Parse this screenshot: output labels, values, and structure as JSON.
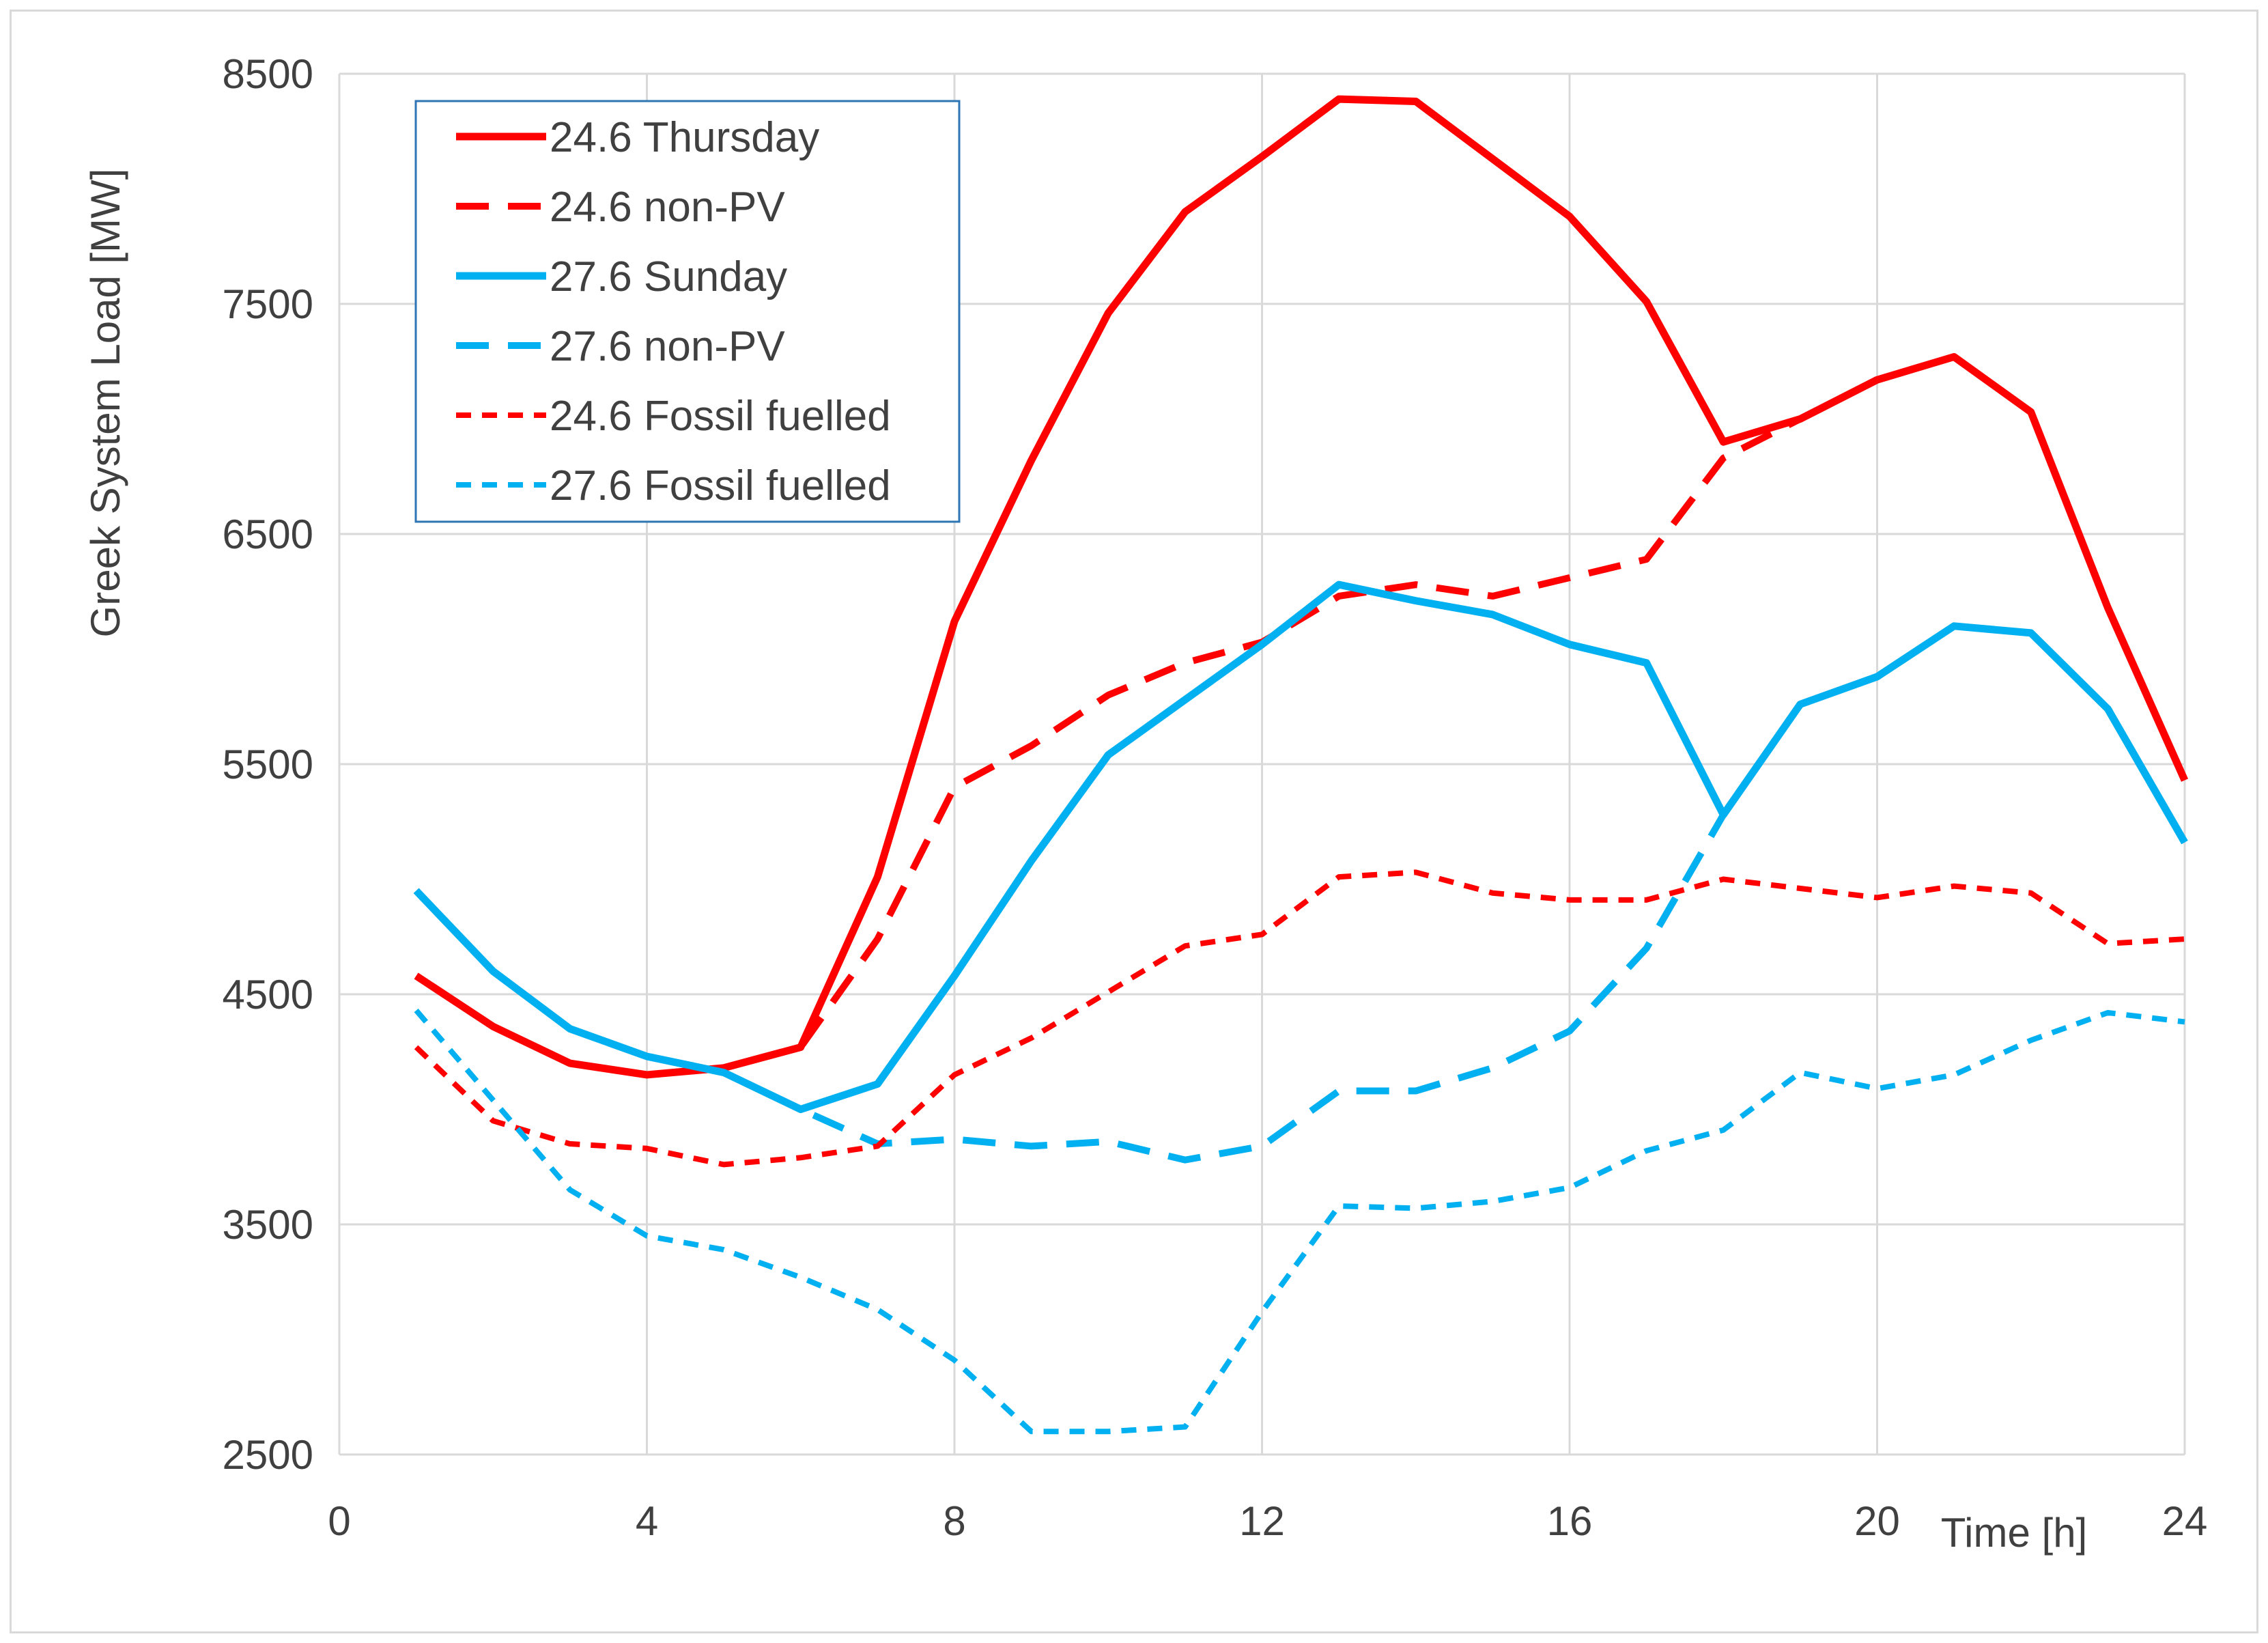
{
  "chart_data": {
    "type": "line",
    "ylabel": "Greek System Load [MW]",
    "xlabel": "Time [h]",
    "xlim": [
      0,
      24
    ],
    "ylim": [
      2500,
      8500
    ],
    "x_ticks": [
      0,
      4,
      8,
      12,
      16,
      20,
      24
    ],
    "y_ticks": [
      2500,
      3500,
      4500,
      5500,
      6500,
      7500,
      8500
    ],
    "x_tick_labels": [
      "0",
      "4",
      "8",
      "12",
      "16",
      "20",
      "24"
    ],
    "y_tick_labels": [
      "2500",
      "3500",
      "4500",
      "5500",
      "6500",
      "7500",
      "8500"
    ],
    "grid": true,
    "legend_position": "top-left",
    "x": [
      1,
      2,
      3,
      4,
      5,
      6,
      7,
      8,
      9,
      10,
      11,
      12,
      13,
      14,
      15,
      16,
      17,
      18,
      19,
      20,
      21,
      22,
      23,
      24
    ],
    "series": [
      {
        "name": "24.6 Thursday",
        "color": "#ff0000",
        "style": "solid",
        "values": [
          4580,
          4360,
          4200,
          4150,
          4180,
          4270,
          5010,
          6120,
          6820,
          7460,
          7900,
          8140,
          8390,
          8380,
          8130,
          7880,
          7510,
          6900,
          7000,
          7170,
          7270,
          7030,
          6180,
          5430
        ]
      },
      {
        "name": "24.6 non-PV",
        "color": "#ff0000",
        "style": "dashed",
        "values": [
          4580,
          4360,
          4200,
          4150,
          4180,
          4270,
          4740,
          5400,
          5580,
          5800,
          5940,
          6030,
          6230,
          6280,
          6230,
          6310,
          6390,
          6830,
          7000,
          7170,
          7270,
          7030,
          6180,
          5430
        ]
      },
      {
        "name": "27.6 Sunday",
        "color": "#00b0f0",
        "style": "solid",
        "values": [
          4950,
          4600,
          4350,
          4230,
          4160,
          4000,
          4110,
          4580,
          5080,
          5540,
          5780,
          6020,
          6280,
          6210,
          6150,
          6020,
          5940,
          5280,
          5760,
          5880,
          6100,
          6070,
          5740,
          5160
        ]
      },
      {
        "name": "27.6 non-PV",
        "color": "#00b0f0",
        "style": "dashed",
        "values": [
          4950,
          4600,
          4350,
          4230,
          4160,
          4000,
          3850,
          3870,
          3840,
          3860,
          3780,
          3840,
          4080,
          4080,
          4180,
          4340,
          4700,
          5280,
          5760,
          5880,
          6100,
          6070,
          5740,
          5160
        ]
      },
      {
        "name": "24.6 Fossil fuelled",
        "color": "#ff0000",
        "style": "dotted",
        "values": [
          4270,
          3950,
          3850,
          3830,
          3760,
          3790,
          3840,
          4150,
          4310,
          4510,
          4710,
          4760,
          5010,
          5030,
          4940,
          4910,
          4910,
          5000,
          4960,
          4920,
          4970,
          4940,
          4720,
          4740
        ]
      },
      {
        "name": "27.6 Fossil fuelled",
        "color": "#00b0f0",
        "style": "dotted",
        "values": [
          4430,
          4040,
          3650,
          3450,
          3390,
          3270,
          3130,
          2910,
          2600,
          2600,
          2620,
          3120,
          3580,
          3570,
          3600,
          3660,
          3820,
          3910,
          4160,
          4090,
          4150,
          4300,
          4420,
          4380
        ]
      }
    ]
  }
}
